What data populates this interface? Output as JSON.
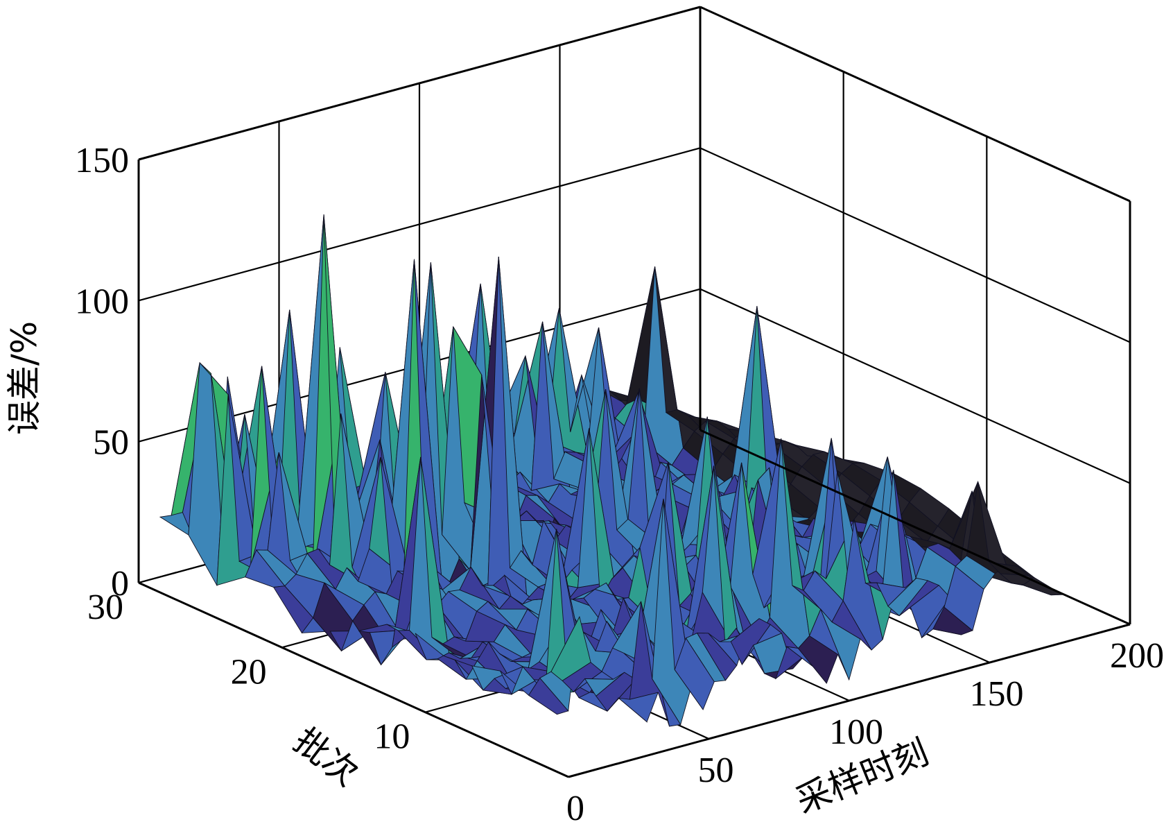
{
  "chart_data": {
    "type": "surface3d",
    "title": "",
    "xlabel": "采样时刻",
    "ylabel": "批次",
    "zlabel": "误差/%",
    "xlim": [
      0,
      200
    ],
    "ylim": [
      0,
      30
    ],
    "zlim": [
      0,
      150
    ],
    "xticks": [
      "0",
      "50",
      "100",
      "150",
      "200"
    ],
    "yticks": [
      "10",
      "20",
      "30"
    ],
    "zticks": [
      "0",
      "50",
      "100",
      "150"
    ],
    "x_data_range": [
      0,
      180
    ],
    "grid": true,
    "colormap": [
      "#2c1f52",
      "#3b3d99",
      "#3f5db5",
      "#3d86b8",
      "#2f9e8f",
      "#36b36c",
      "#f5c131"
    ],
    "background": "#ffffff",
    "peak_samples": [
      {
        "x": 8,
        "y": 27,
        "z": 80
      },
      {
        "x": 12,
        "y": 23,
        "z": 60
      },
      {
        "x": 18,
        "y": 25,
        "z": 85
      },
      {
        "x": 24,
        "y": 28,
        "z": 70
      },
      {
        "x": 30,
        "y": 22,
        "z": 140
      },
      {
        "x": 36,
        "y": 26,
        "z": 95
      },
      {
        "x": 42,
        "y": 19,
        "z": 130
      },
      {
        "x": 48,
        "y": 27,
        "z": 75
      },
      {
        "x": 55,
        "y": 20,
        "z": 120
      },
      {
        "x": 60,
        "y": 16,
        "z": 130
      },
      {
        "x": 66,
        "y": 21,
        "z": 95
      },
      {
        "x": 72,
        "y": 12,
        "z": 75
      },
      {
        "x": 80,
        "y": 9,
        "z": 70
      },
      {
        "x": 88,
        "y": 14,
        "z": 80
      },
      {
        "x": 96,
        "y": 6,
        "z": 70
      },
      {
        "x": 104,
        "y": 10,
        "z": 75
      },
      {
        "x": 112,
        "y": 8,
        "z": 55
      },
      {
        "x": 120,
        "y": 5,
        "z": 65
      },
      {
        "x": 130,
        "y": 7,
        "z": 70
      },
      {
        "x": 140,
        "y": 4,
        "z": 60
      },
      {
        "x": 150,
        "y": 6,
        "z": 58
      },
      {
        "x": 160,
        "y": 3,
        "z": 55
      },
      {
        "x": 170,
        "y": 5,
        "z": 45
      }
    ]
  }
}
